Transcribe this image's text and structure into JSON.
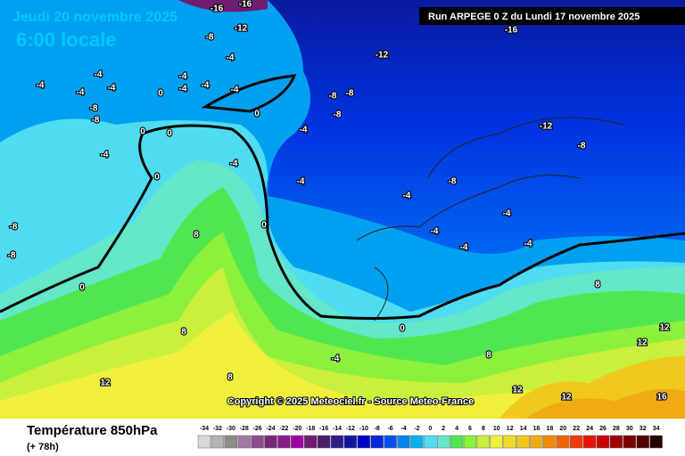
{
  "header": {
    "title": "Jeudi 20 novembre 2025",
    "subtitle": "6:00 locale",
    "run": "Run ARPEGE 0 Z du Lundi 17 novembre 2025"
  },
  "map": {
    "copyright": "Copyright © 2025 Meteociel.fr - Source Meteo-France",
    "contour_labels": [
      -16,
      -16,
      -12,
      -8,
      -4,
      -12,
      -16,
      -4,
      -4,
      -4,
      -4,
      0,
      -4,
      -4,
      -4,
      -4,
      -8,
      -8,
      0,
      0,
      -4,
      0,
      -4,
      -8,
      -8,
      -8,
      -12,
      -8,
      -4,
      0,
      -4,
      -8,
      -4,
      0,
      8,
      -4,
      -4,
      -4,
      -4,
      -8,
      -8,
      0,
      8,
      8,
      -4,
      12,
      8,
      12,
      12,
      16,
      12,
      12,
      0,
      8
    ]
  },
  "footer": {
    "title": "Température 850hPa",
    "lead": "(+ 78h)",
    "scale": {
      "labels": [
        -34,
        -32,
        -30,
        -28,
        -26,
        -24,
        -22,
        -20,
        -18,
        -16,
        -14,
        -12,
        -10,
        -8,
        -6,
        -4,
        -2,
        0,
        2,
        4,
        6,
        8,
        10,
        12,
        14,
        16,
        18,
        20,
        22,
        24,
        26,
        28,
        30,
        32,
        34
      ],
      "colors": [
        "#d8d8d8",
        "#b4b4b4",
        "#8c8c8c",
        "#a07aa0",
        "#8c4c8c",
        "#782878",
        "#8c1c8c",
        "#a000a0",
        "#701c70",
        "#4a1c6a",
        "#301c8c",
        "#1414a0",
        "#0000c8",
        "#0028e0",
        "#0050f0",
        "#0082f0",
        "#00b4f0",
        "#50dcf0",
        "#64e6c8",
        "#50e650",
        "#8cf03c",
        "#c8f03c",
        "#f0f03c",
        "#f0dc28",
        "#f0c81e",
        "#f0aa14",
        "#f08c0a",
        "#f06400",
        "#f03c00",
        "#e61400",
        "#c80000",
        "#a00000",
        "#780000",
        "#500000",
        "#280000"
      ]
    }
  }
}
